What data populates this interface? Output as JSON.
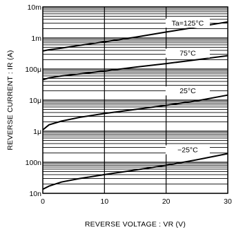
{
  "chart_data": {
    "type": "line",
    "xlabel": "REVERSE VOLTAGE : VR (V)",
    "ylabel": "REVERSE CURRENT : IR (A)",
    "xlim": [
      0,
      30
    ],
    "ylim": [
      1e-08,
      0.01
    ],
    "y_scale": "log",
    "grid": true,
    "x_ticks": [
      0,
      10,
      20,
      30
    ],
    "x_tick_labels": [
      "0",
      "10",
      "20",
      "30"
    ],
    "y_ticks": [
      1e-08,
      1e-07,
      1e-06,
      1e-05,
      0.0001,
      0.001,
      0.01
    ],
    "y_tick_labels": [
      "10n",
      "100n",
      "1μ",
      "10μ",
      "100μ",
      "1m",
      "10m"
    ],
    "series": [
      {
        "name": "Ta=125°C",
        "x": [
          0,
          1,
          3,
          6,
          10,
          15,
          20,
          25,
          30
        ],
        "y": [
          0.00038,
          0.00042,
          0.00047,
          0.00058,
          0.00075,
          0.00106,
          0.00155,
          0.00225,
          0.0033
        ]
      },
      {
        "name": "75°C",
        "x": [
          0,
          1,
          3,
          6,
          10,
          15,
          20,
          25,
          30
        ],
        "y": [
          4.5e-05,
          5.2e-05,
          6e-05,
          7e-05,
          8.6e-05,
          0.000115,
          0.00015,
          0.0002,
          0.00027
        ]
      },
      {
        "name": "25°C",
        "x": [
          0,
          1,
          3,
          6,
          10,
          15,
          20,
          25,
          30
        ],
        "y": [
          1.1e-06,
          1.6e-06,
          2.1e-06,
          2.8e-06,
          3.7e-06,
          5e-06,
          6.8e-06,
          9.5e-06,
          1.45e-05
        ]
      },
      {
        "name": "−25°C",
        "x": [
          0,
          1,
          3,
          6,
          10,
          15,
          20,
          25,
          30
        ],
        "y": [
          1.35e-08,
          1.7e-08,
          2.3e-08,
          3e-08,
          4e-08,
          5.6e-08,
          8e-08,
          1.2e-07,
          1.9e-07
        ]
      }
    ]
  }
}
